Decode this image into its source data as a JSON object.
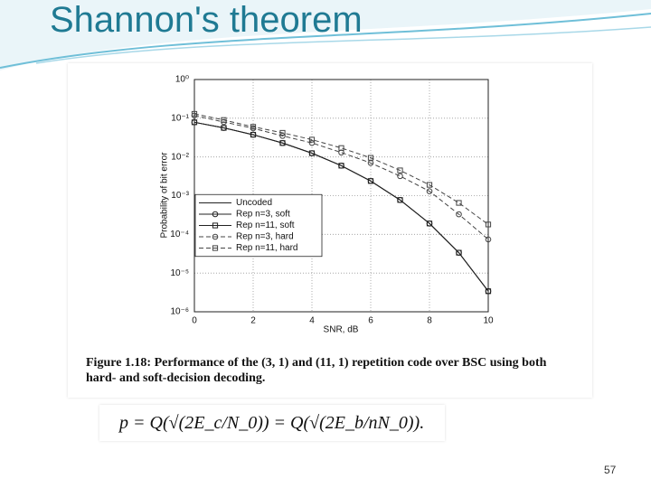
{
  "title": "Shannon's theorem",
  "chart_data": {
    "type": "line",
    "x_label": "SNR, dB",
    "y_label": "Probability of bit error",
    "x": [
      0,
      1,
      2,
      3,
      4,
      5,
      6,
      7,
      8,
      9,
      10
    ],
    "series": [
      {
        "name": "Uncoded",
        "color": "#222222",
        "dash": false,
        "marker": null,
        "values": [
          0.0786,
          0.0563,
          0.0375,
          0.0229,
          0.0125,
          0.00595,
          0.00239,
          0.000773,
          0.000191,
          3.36e-05,
          3.4e-06
        ]
      },
      {
        "name": "Rep n=3, soft",
        "color": "#222222",
        "dash": false,
        "marker": "circle",
        "values": [
          0.0786,
          0.0563,
          0.0375,
          0.0229,
          0.0125,
          0.00595,
          0.00239,
          0.000773,
          0.000191,
          3.36e-05,
          3.4e-06
        ]
      },
      {
        "name": "Rep n=11, soft",
        "color": "#222222",
        "dash": false,
        "marker": "square",
        "values": [
          0.0786,
          0.0563,
          0.0375,
          0.0229,
          0.0125,
          0.00595,
          0.00239,
          0.000773,
          0.000191,
          3.36e-05,
          3.4e-06
        ]
      },
      {
        "name": "Rep n=3, hard",
        "color": "#444444",
        "dash": true,
        "marker": "circle",
        "values": [
          0.117,
          0.08,
          0.055,
          0.035,
          0.023,
          0.013,
          0.007,
          0.0032,
          0.0013,
          0.00033,
          7.4e-05
        ]
      },
      {
        "name": "Rep n=11, hard",
        "color": "#444444",
        "dash": true,
        "marker": "square",
        "values": [
          0.13,
          0.09,
          0.06,
          0.042,
          0.028,
          0.017,
          0.0095,
          0.0045,
          0.0019,
          0.00065,
          0.00018
        ]
      }
    ],
    "xlim": [
      0,
      10
    ],
    "xticks": [
      0,
      2,
      4,
      6,
      8,
      10
    ],
    "ylim": [
      1e-06,
      1
    ],
    "log_y": true,
    "yticks": [
      {
        "value": 1,
        "label": "10⁰"
      },
      {
        "value": 0.1,
        "label": "10⁻¹"
      },
      {
        "value": 0.01,
        "label": "10⁻²"
      },
      {
        "value": 0.001,
        "label": "10⁻³"
      },
      {
        "value": 0.0001,
        "label": "10⁻⁴"
      },
      {
        "value": 1e-05,
        "label": "10⁻⁵"
      },
      {
        "value": 1e-06,
        "label": "10⁻⁶"
      }
    ],
    "grid": true,
    "legend": "center left"
  },
  "caption": "Figure 1.18: Performance of the (3, 1) and (11, 1) repetition code over BSC using both hard- and soft-decision decoding.",
  "formula": "p = Q(√(2E_c/N_0)) = Q(√(2E_b/nN_0)).",
  "page_number": "57"
}
